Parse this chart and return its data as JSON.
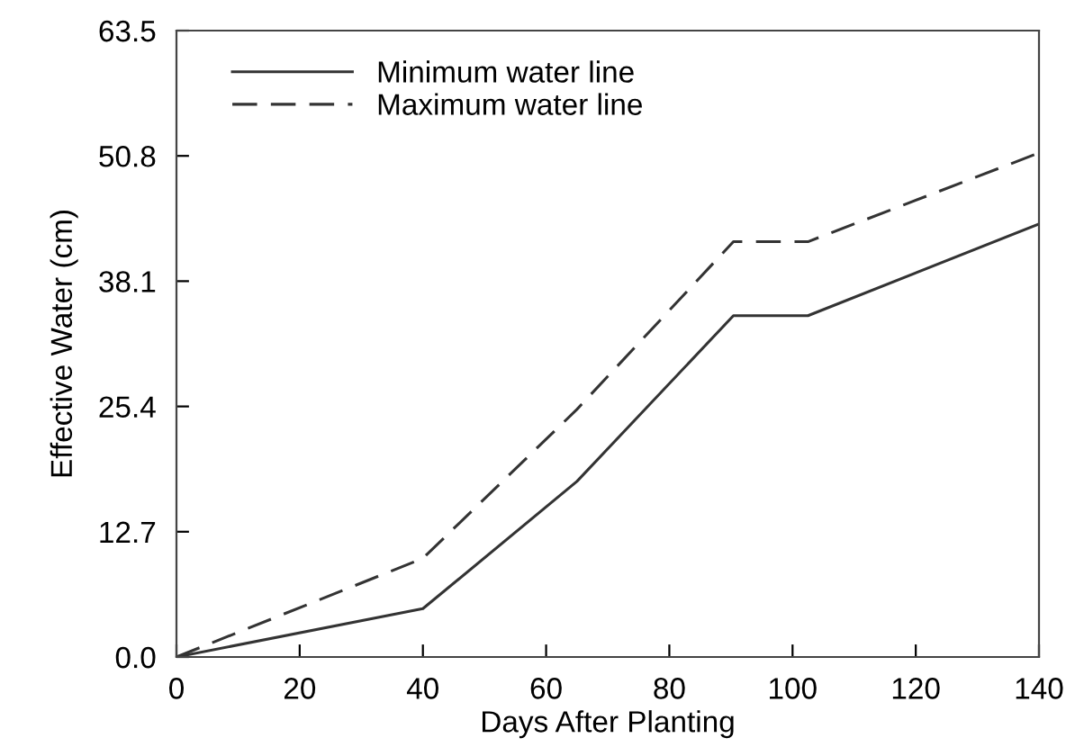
{
  "chart_data": {
    "type": "line",
    "xlabel": "Days After Planting",
    "ylabel": "Effective Water (cm)",
    "xlim": [
      0,
      140
    ],
    "xticks": [
      0,
      20,
      40,
      60,
      80,
      100,
      120,
      140
    ],
    "ylim": [
      0,
      63.5
    ],
    "yticks": [
      {
        "value": 0,
        "label": "0.0"
      },
      12.7,
      25.4,
      38.1,
      50.8,
      63.5
    ],
    "legend": "top left",
    "grid": false,
    "series": [
      {
        "name": "Minimum water line",
        "color": "#333333",
        "line_style": "solid",
        "x": [
          0,
          40,
          65,
          90.4,
          102.5,
          140
        ],
        "values": [
          0,
          4.9,
          17.8,
          34.6,
          34.6,
          43.9
        ]
      },
      {
        "name": "Maximum water line",
        "color": "#333333",
        "line_style": "dashed",
        "x": [
          0,
          40,
          65,
          90.4,
          102.5,
          140
        ],
        "values": [
          0,
          10.0,
          25.1,
          42.1,
          42.1,
          51.1
        ]
      }
    ]
  }
}
